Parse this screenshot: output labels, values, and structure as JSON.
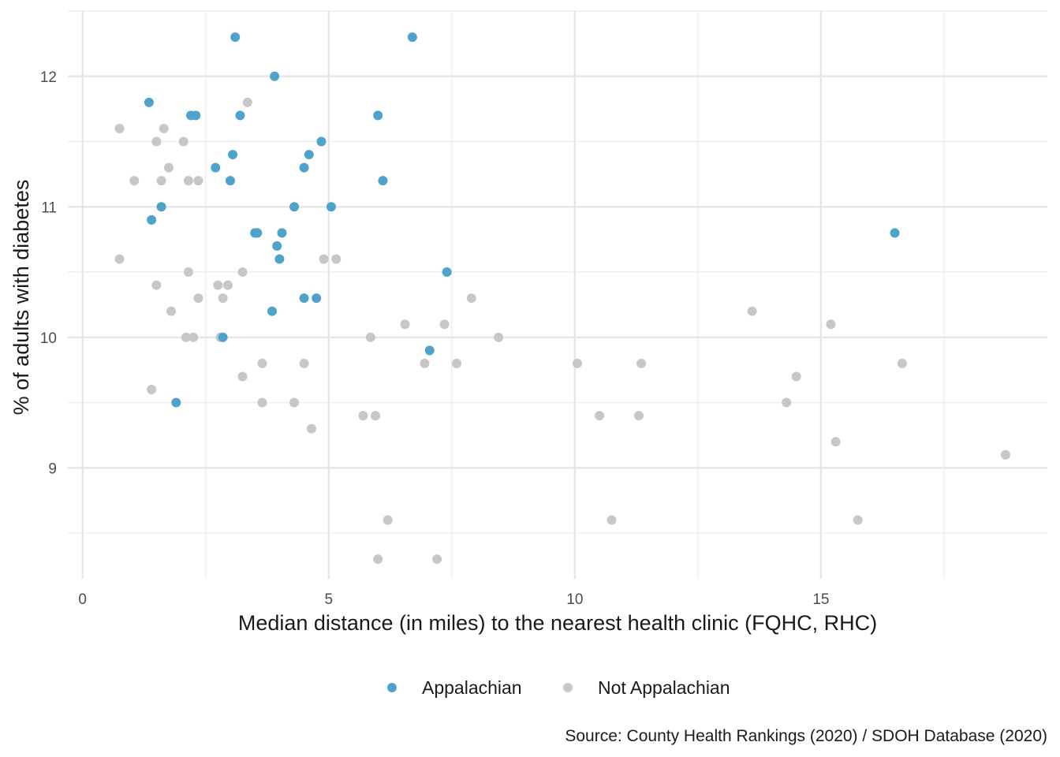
{
  "chart_data": {
    "type": "scatter",
    "title": "",
    "xlabel": "Median distance (in miles) to the nearest health clinic (FQHC, RHC)",
    "ylabel": "% of adults with diabetes",
    "caption": "Source: County Health Rankings (2020) / SDOH Database (2020)",
    "xlim": [
      -0.3,
      19.6
    ],
    "ylim": [
      8.15,
      12.5
    ],
    "x_ticks": [
      0,
      5,
      10,
      15
    ],
    "x_tick_labels": [
      "0",
      "5",
      "10",
      "15"
    ],
    "y_ticks": [
      9,
      10,
      11,
      12
    ],
    "y_tick_labels": [
      "9",
      "10",
      "11",
      "12"
    ],
    "grid": true,
    "legend_position": "bottom",
    "series": [
      {
        "name": "Appalachian",
        "color": "#4da3cb",
        "points": [
          [
            3.1,
            12.3
          ],
          [
            6.7,
            12.3
          ],
          [
            3.9,
            12.0
          ],
          [
            1.35,
            11.8
          ],
          [
            2.2,
            11.7
          ],
          [
            2.3,
            11.7
          ],
          [
            3.2,
            11.7
          ],
          [
            6.0,
            11.7
          ],
          [
            4.85,
            11.5
          ],
          [
            3.05,
            11.4
          ],
          [
            4.6,
            11.4
          ],
          [
            2.7,
            11.3
          ],
          [
            4.5,
            11.3
          ],
          [
            3.0,
            11.2
          ],
          [
            6.1,
            11.2
          ],
          [
            1.6,
            11.0
          ],
          [
            4.3,
            11.0
          ],
          [
            5.05,
            11.0
          ],
          [
            1.4,
            10.9
          ],
          [
            3.5,
            10.8
          ],
          [
            3.55,
            10.8
          ],
          [
            4.05,
            10.8
          ],
          [
            3.95,
            10.7
          ],
          [
            4.0,
            10.6
          ],
          [
            7.4,
            10.5
          ],
          [
            4.5,
            10.3
          ],
          [
            4.75,
            10.3
          ],
          [
            3.85,
            10.2
          ],
          [
            2.85,
            10.0
          ],
          [
            7.05,
            9.9
          ],
          [
            1.9,
            9.5
          ],
          [
            16.5,
            10.8
          ]
        ]
      },
      {
        "name": "Not Appalachian",
        "color": "#c7c7c7",
        "points": [
          [
            3.35,
            11.8
          ],
          [
            0.75,
            11.6
          ],
          [
            1.65,
            11.6
          ],
          [
            1.5,
            11.5
          ],
          [
            2.05,
            11.5
          ],
          [
            1.75,
            11.3
          ],
          [
            1.05,
            11.2
          ],
          [
            1.6,
            11.2
          ],
          [
            2.15,
            11.2
          ],
          [
            2.35,
            11.2
          ],
          [
            0.75,
            10.6
          ],
          [
            4.9,
            10.6
          ],
          [
            5.15,
            10.6
          ],
          [
            2.15,
            10.5
          ],
          [
            3.25,
            10.5
          ],
          [
            1.5,
            10.4
          ],
          [
            2.75,
            10.4
          ],
          [
            2.95,
            10.4
          ],
          [
            2.35,
            10.3
          ],
          [
            2.85,
            10.3
          ],
          [
            7.9,
            10.3
          ],
          [
            1.8,
            10.2
          ],
          [
            13.6,
            10.2
          ],
          [
            6.55,
            10.1
          ],
          [
            7.35,
            10.1
          ],
          [
            15.2,
            10.1
          ],
          [
            2.1,
            10.0
          ],
          [
            2.25,
            10.0
          ],
          [
            2.8,
            10.0
          ],
          [
            5.85,
            10.0
          ],
          [
            8.45,
            10.0
          ],
          [
            3.65,
            9.8
          ],
          [
            4.5,
            9.8
          ],
          [
            6.95,
            9.8
          ],
          [
            7.6,
            9.8
          ],
          [
            10.05,
            9.8
          ],
          [
            11.35,
            9.8
          ],
          [
            16.65,
            9.8
          ],
          [
            3.25,
            9.7
          ],
          [
            14.5,
            9.7
          ],
          [
            1.4,
            9.6
          ],
          [
            3.65,
            9.5
          ],
          [
            4.3,
            9.5
          ],
          [
            14.3,
            9.5
          ],
          [
            5.7,
            9.4
          ],
          [
            5.95,
            9.4
          ],
          [
            10.5,
            9.4
          ],
          [
            11.3,
            9.4
          ],
          [
            4.65,
            9.3
          ],
          [
            15.3,
            9.2
          ],
          [
            18.75,
            9.1
          ],
          [
            6.2,
            8.6
          ],
          [
            10.75,
            8.6
          ],
          [
            15.75,
            8.6
          ],
          [
            6.0,
            8.3
          ],
          [
            7.2,
            8.3
          ]
        ]
      }
    ]
  }
}
